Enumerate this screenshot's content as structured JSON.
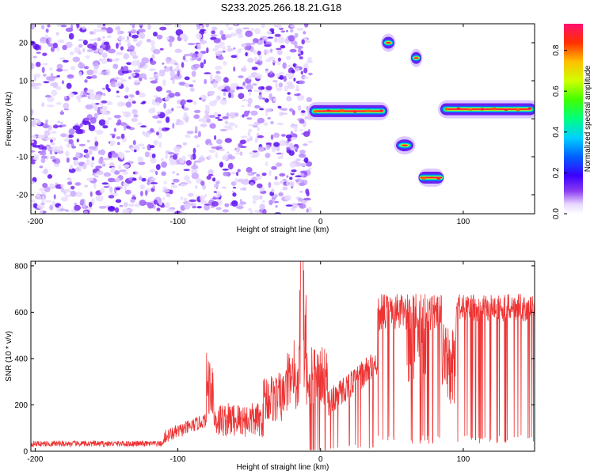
{
  "title": "S233.2025.266.18.21.G18",
  "chart_data": [
    {
      "type": "heatmap",
      "xlabel": "Height of straight line (km)",
      "ylabel": "Frequency (Hz)",
      "xlim": [
        -203,
        150
      ],
      "ylim": [
        -25,
        25
      ],
      "xticks": [
        -200,
        -100,
        0,
        100
      ],
      "yticks": [
        -20,
        -10,
        0,
        10,
        20
      ],
      "colorbar": {
        "label": "Normalized spectral amplitude",
        "range": [
          0,
          0.93
        ],
        "ticks": [
          0.0,
          0.2,
          0.4,
          0.6,
          0.8
        ]
      },
      "features": [
        {
          "name": "noise",
          "x_range": [
            -203,
            -7
          ],
          "y_range": [
            -25,
            25
          ]
        },
        {
          "name": "ridge-1",
          "x_range": [
            -7,
            46
          ],
          "freq": 2
        },
        {
          "name": "blob-20",
          "x_range": [
            45,
            50
          ],
          "freq": 20
        },
        {
          "name": "blob-16",
          "x_range": [
            65,
            69
          ],
          "freq": 16
        },
        {
          "name": "blob-minus7",
          "x_range": [
            55,
            63
          ],
          "freq": -7
        },
        {
          "name": "ridge-minus16",
          "x_range": [
            69,
            86
          ],
          "freq": -15.5
        },
        {
          "name": "ridge-3",
          "x_range": [
            85,
            150
          ],
          "freq": 2.5
        }
      ]
    },
    {
      "type": "line",
      "xlabel": "Height of straight line (km)",
      "ylabel": "SNR (10 * v/v)",
      "xlim": [
        -203,
        150
      ],
      "ylim": [
        0,
        820
      ],
      "xticks": [
        -200,
        -100,
        0,
        100
      ],
      "yticks": [
        0,
        200,
        400,
        600,
        800
      ],
      "color": "#ee3333",
      "series_description": "SNR vs height"
    }
  ]
}
